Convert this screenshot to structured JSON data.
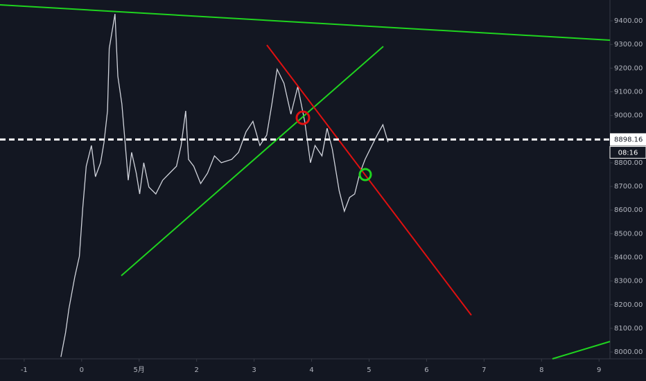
{
  "chart_data": {
    "type": "line",
    "color": "#d1d4dc",
    "x": [
      -0.36,
      -0.28,
      -0.22,
      -0.12,
      -0.04,
      0.02,
      0.08,
      0.17,
      0.24,
      0.33,
      0.39,
      0.45,
      0.48,
      0.54,
      0.58,
      0.63,
      0.7,
      0.75,
      0.81,
      0.87,
      0.95,
      1.01,
      1.08,
      1.17,
      1.29,
      1.41,
      1.53,
      1.65,
      1.73,
      1.81,
      1.86,
      1.95,
      2.07,
      2.19,
      2.31,
      2.43,
      2.61,
      2.73,
      2.86,
      2.98,
      3.1,
      3.22,
      3.31,
      3.4,
      3.52,
      3.64,
      3.76,
      3.88,
      3.98,
      4.06,
      4.18,
      4.27,
      4.36,
      4.48,
      4.57,
      4.66,
      4.75,
      4.84,
      4.93,
      5.02,
      5.14,
      5.24,
      5.33
    ],
    "values": [
      7979,
      8082,
      8184,
      8316,
      8404,
      8609,
      8785,
      8873,
      8741,
      8800,
      8887,
      9019,
      9283,
      9371,
      9429,
      9166,
      9049,
      8902,
      8726,
      8844,
      8756,
      8668,
      8800,
      8697,
      8668,
      8726,
      8756,
      8785,
      8873,
      9019,
      8814,
      8785,
      8712,
      8756,
      8829,
      8800,
      8814,
      8844,
      8931,
      8975,
      8873,
      8917,
      9049,
      9195,
      9136,
      9005,
      9122,
      8975,
      8800,
      8873,
      8829,
      8946,
      8858,
      8682,
      8595,
      8653,
      8668,
      8756,
      8814,
      8858,
      8917,
      8961,
      8887
    ],
    "xlim": [
      -1.42,
      9.19
    ],
    "xticks": [
      -1,
      0,
      {
        "value": 1,
        "label": "5月"
      },
      2,
      3,
      4,
      5,
      6,
      7,
      8,
      9
    ],
    "xtick_labels_override": null,
    "ylim": [
      7971,
      9488
    ],
    "yticks": [
      {
        "value": 8000,
        "label": "8000.00"
      },
      {
        "value": 8100,
        "label": "8100.00"
      },
      {
        "value": 8200,
        "label": "8200.00"
      },
      {
        "value": 8300,
        "label": "8300.00"
      },
      {
        "value": 8400,
        "label": "8400.00"
      },
      {
        "value": 8500,
        "label": "8500.00"
      },
      {
        "value": 8600,
        "label": "8600.00"
      },
      {
        "value": 8700,
        "label": "8700.00"
      },
      {
        "value": 8800,
        "label": "8800.00"
      },
      {
        "value": 8900,
        "label": "8900.00"
      },
      {
        "value": 9000,
        "label": "9000.00"
      },
      {
        "value": 9100,
        "label": "9100.00"
      },
      {
        "value": 9200,
        "label": "9200.00"
      },
      {
        "value": 9300,
        "label": "9300.00"
      },
      {
        "value": 9400,
        "label": "9400.00"
      }
    ],
    "current_price": 8898.16,
    "countdown": "08:16"
  }
}
